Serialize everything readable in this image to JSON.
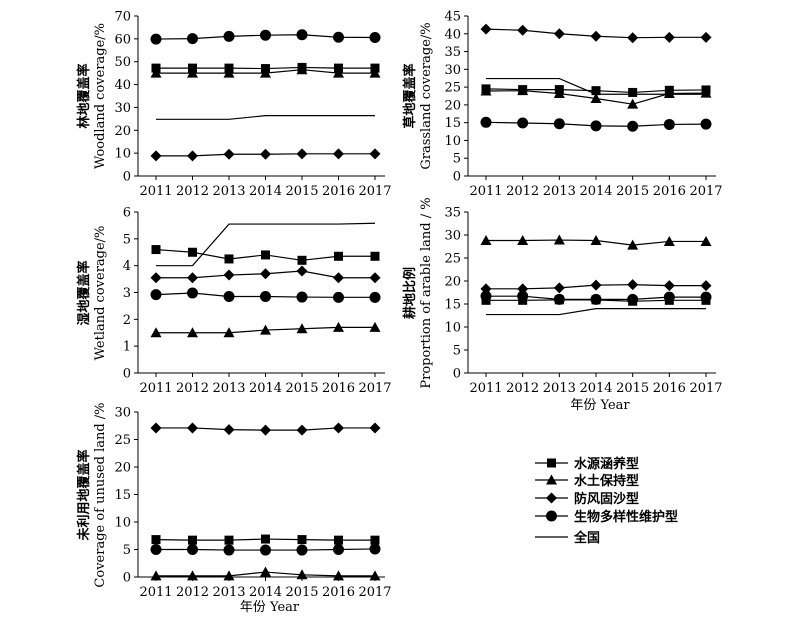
{
  "chart_data": [
    {
      "type": "line",
      "ylabel_cn": "林地覆盖率",
      "ylabel_en": "Woodland coverage/%",
      "xlabel": "",
      "x": [
        "2011",
        "2012",
        "2013",
        "2014",
        "2015",
        "2016",
        "2017"
      ],
      "ylim": [
        0,
        70
      ],
      "yticks": [
        0,
        10,
        20,
        30,
        40,
        50,
        60,
        70
      ],
      "series": [
        {
          "name": "水源涵养型",
          "marker": "square",
          "values": [
            47.2,
            47.2,
            47.2,
            47.0,
            47.5,
            47.2,
            47.2
          ]
        },
        {
          "name": "水土保持型",
          "marker": "triangle",
          "values": [
            45.0,
            45.0,
            45.0,
            45.0,
            46.5,
            45.0,
            45.0
          ]
        },
        {
          "name": "防风固沙型",
          "marker": "diamond",
          "values": [
            8.8,
            8.8,
            9.5,
            9.5,
            9.7,
            9.7,
            9.7
          ]
        },
        {
          "name": "生物多样性维护型",
          "marker": "circle",
          "values": [
            59.9,
            60.1,
            61.1,
            61.6,
            61.8,
            60.7,
            60.6
          ]
        },
        {
          "name": "全国",
          "marker": "none",
          "values": [
            24.8,
            24.8,
            24.8,
            26.4,
            26.4,
            26.4,
            26.4
          ]
        }
      ]
    },
    {
      "type": "line",
      "ylabel_cn": "草地覆盖率",
      "ylabel_en": "Grassland coverage/%",
      "xlabel": "",
      "x": [
        "2011",
        "2012",
        "2013",
        "2014",
        "2015",
        "2016",
        "2017"
      ],
      "ylim": [
        0,
        45
      ],
      "yticks": [
        0,
        5,
        10,
        15,
        20,
        25,
        30,
        35,
        40,
        45
      ],
      "series": [
        {
          "name": "水源涵养型",
          "marker": "square",
          "values": [
            24.5,
            24.3,
            24.3,
            24.0,
            23.5,
            24.1,
            24.2
          ]
        },
        {
          "name": "水土保持型",
          "marker": "triangle",
          "values": [
            23.9,
            24.0,
            23.2,
            21.8,
            20.2,
            23.2,
            23.3
          ]
        },
        {
          "name": "防风固沙型",
          "marker": "diamond",
          "values": [
            41.3,
            41.0,
            40.0,
            39.3,
            38.9,
            39.0,
            39.0
          ]
        },
        {
          "name": "生物多样性维护型",
          "marker": "circle",
          "values": [
            15.1,
            14.9,
            14.7,
            14.1,
            14.0,
            14.5,
            14.6
          ]
        },
        {
          "name": "全国",
          "marker": "none",
          "values": [
            27.4,
            27.4,
            27.4,
            23.0,
            23.0,
            23.0,
            23.0
          ]
        }
      ]
    },
    {
      "type": "line",
      "ylabel_cn": "湿地覆盖率",
      "ylabel_en": "Wetland coverage/%",
      "xlabel": "",
      "x": [
        "2011",
        "2012",
        "2013",
        "2014",
        "2015",
        "2016",
        "2017"
      ],
      "ylim": [
        0,
        6
      ],
      "yticks": [
        0,
        1,
        2,
        3,
        4,
        5,
        6
      ],
      "series": [
        {
          "name": "水源涵养型",
          "marker": "square",
          "values": [
            4.6,
            4.5,
            4.25,
            4.4,
            4.2,
            4.35,
            4.35
          ]
        },
        {
          "name": "水土保持型",
          "marker": "triangle",
          "values": [
            1.5,
            1.5,
            1.5,
            1.6,
            1.65,
            1.7,
            1.7
          ]
        },
        {
          "name": "防风固沙型",
          "marker": "diamond",
          "values": [
            3.55,
            3.55,
            3.65,
            3.7,
            3.8,
            3.55,
            3.55
          ]
        },
        {
          "name": "生物多样性维护型",
          "marker": "circle",
          "values": [
            2.92,
            2.98,
            2.85,
            2.85,
            2.83,
            2.82,
            2.82
          ]
        },
        {
          "name": "全国",
          "marker": "none",
          "values": [
            4.0,
            4.0,
            5.55,
            5.55,
            5.55,
            5.55,
            5.58
          ]
        }
      ]
    },
    {
      "type": "line",
      "ylabel_cn": "耕地比例",
      "ylabel_en": "Proportion of arable land / %",
      "xlabel": "年份 Year",
      "x": [
        "2011",
        "2012",
        "2013",
        "2014",
        "2015",
        "2016",
        "2017"
      ],
      "ylim": [
        0,
        35
      ],
      "yticks": [
        0,
        5,
        10,
        15,
        20,
        25,
        30,
        35
      ],
      "series": [
        {
          "name": "水源涵养型",
          "marker": "square",
          "values": [
            15.8,
            15.8,
            15.9,
            15.9,
            15.6,
            15.8,
            15.8
          ]
        },
        {
          "name": "水土保持型",
          "marker": "triangle",
          "values": [
            28.8,
            28.8,
            28.9,
            28.8,
            27.8,
            28.6,
            28.6
          ]
        },
        {
          "name": "防风固沙型",
          "marker": "diamond",
          "values": [
            18.3,
            18.3,
            18.5,
            19.1,
            19.2,
            19.0,
            19.0
          ]
        },
        {
          "name": "生物多样性维护型",
          "marker": "circle",
          "values": [
            16.7,
            16.7,
            16.0,
            16.0,
            16.0,
            16.5,
            16.5
          ]
        },
        {
          "name": "全国",
          "marker": "none",
          "values": [
            12.7,
            12.7,
            12.7,
            14.0,
            14.0,
            14.0,
            14.0
          ]
        }
      ]
    },
    {
      "type": "line",
      "ylabel_cn": "未利用地覆盖率",
      "ylabel_en": "Coverage of unused land /%",
      "xlabel": "年份 Year",
      "x": [
        "2011",
        "2012",
        "2013",
        "2014",
        "2015",
        "2016",
        "2017"
      ],
      "ylim": [
        0,
        30
      ],
      "yticks": [
        0,
        5,
        10,
        15,
        20,
        25,
        30
      ],
      "series": [
        {
          "name": "水源涵养型",
          "marker": "square",
          "values": [
            6.8,
            6.7,
            6.7,
            6.9,
            6.8,
            6.7,
            6.7
          ]
        },
        {
          "name": "水土保持型",
          "marker": "triangle",
          "values": [
            0.2,
            0.2,
            0.2,
            0.9,
            0.4,
            0.2,
            0.2
          ]
        },
        {
          "name": "防风固沙型",
          "marker": "diamond",
          "values": [
            27.1,
            27.1,
            26.8,
            26.7,
            26.7,
            27.1,
            27.1
          ]
        },
        {
          "name": "生物多样性维护型",
          "marker": "circle",
          "values": [
            5.0,
            5.0,
            4.9,
            4.9,
            4.9,
            5.0,
            5.1
          ]
        },
        {
          "name": "全国",
          "marker": "none",
          "values": [
            null,
            null,
            null,
            null,
            null,
            null,
            null
          ]
        }
      ]
    }
  ],
  "legend": {
    "items": [
      {
        "label": "水源涵养型",
        "marker": "square"
      },
      {
        "label": "水土保持型",
        "marker": "triangle"
      },
      {
        "label": "防风固沙型",
        "marker": "diamond"
      },
      {
        "label": "生物多样性维护型",
        "marker": "circle"
      },
      {
        "label": "全国",
        "marker": "none"
      }
    ]
  },
  "colors": {
    "ink": "#000000",
    "background": "#ffffff"
  }
}
